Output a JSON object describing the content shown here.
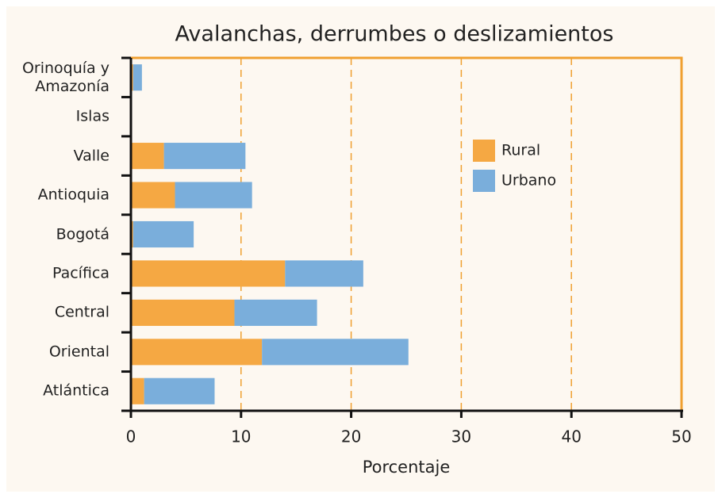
{
  "chart_data": {
    "type": "stacked-barh",
    "title": "Avalanchas, derrumbes o deslizamientos",
    "xlabel": "Porcentaje",
    "categories": [
      "Orinoquía y Amazonía",
      "Islas",
      "Valle",
      "Antioquia",
      "Bogotá",
      "Pacífica",
      "Central",
      "Oriental",
      "Atlántica"
    ],
    "series": [
      {
        "name": "Rural",
        "color": "#f5a843",
        "values": [
          0.2,
          0,
          3.0,
          4.0,
          0.2,
          14.0,
          9.4,
          11.9,
          1.2
        ]
      },
      {
        "name": "Urbano",
        "color": "#7aaedb",
        "values": [
          0.8,
          0,
          7.4,
          7.0,
          5.5,
          7.1,
          7.5,
          13.3,
          6.4
        ]
      }
    ],
    "xlim": [
      0,
      50
    ],
    "xticks": [
      0,
      10,
      20,
      30,
      40,
      50
    ],
    "grid": true
  }
}
